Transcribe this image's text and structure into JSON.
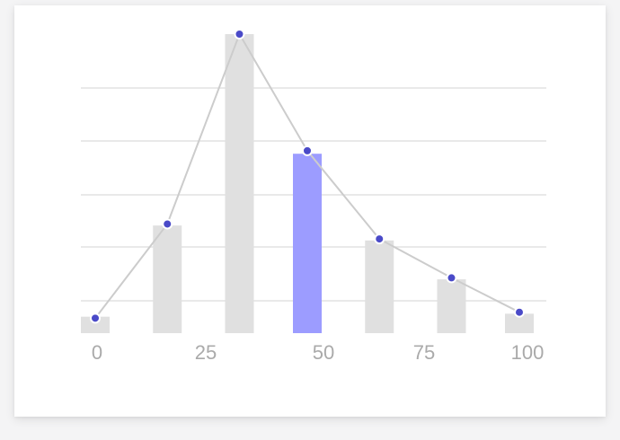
{
  "chart_data": {
    "type": "bar",
    "x_ticks": [
      "0",
      "25",
      "50",
      "75",
      "100"
    ],
    "xlim": [
      0,
      100
    ],
    "ylim": [
      0,
      100
    ],
    "grid": true,
    "bars": [
      {
        "x": 0,
        "value": 5.5,
        "highlighted": false
      },
      {
        "x": 17,
        "value": 36,
        "highlighted": false
      },
      {
        "x": 34,
        "value": 100,
        "highlighted": false
      },
      {
        "x": 50,
        "value": 60,
        "highlighted": true
      },
      {
        "x": 67,
        "value": 31,
        "highlighted": false
      },
      {
        "x": 84,
        "value": 18,
        "highlighted": false
      },
      {
        "x": 100,
        "value": 6.5,
        "highlighted": false
      }
    ],
    "line": {
      "points": [
        {
          "x": 0,
          "y": 5
        },
        {
          "x": 17,
          "y": 36.5
        },
        {
          "x": 34,
          "y": 100
        },
        {
          "x": 50,
          "y": 61
        },
        {
          "x": 67,
          "y": 31.5
        },
        {
          "x": 84,
          "y": 18.5
        },
        {
          "x": 100,
          "y": 7
        }
      ]
    },
    "colors": {
      "bar": "#e0e0e0",
      "highlight_bar": "#9c9cff",
      "line": "#cccccc",
      "point": "#4a4ac8",
      "grid": "#e2e2e2",
      "tick_label": "#aaaaaa"
    }
  }
}
